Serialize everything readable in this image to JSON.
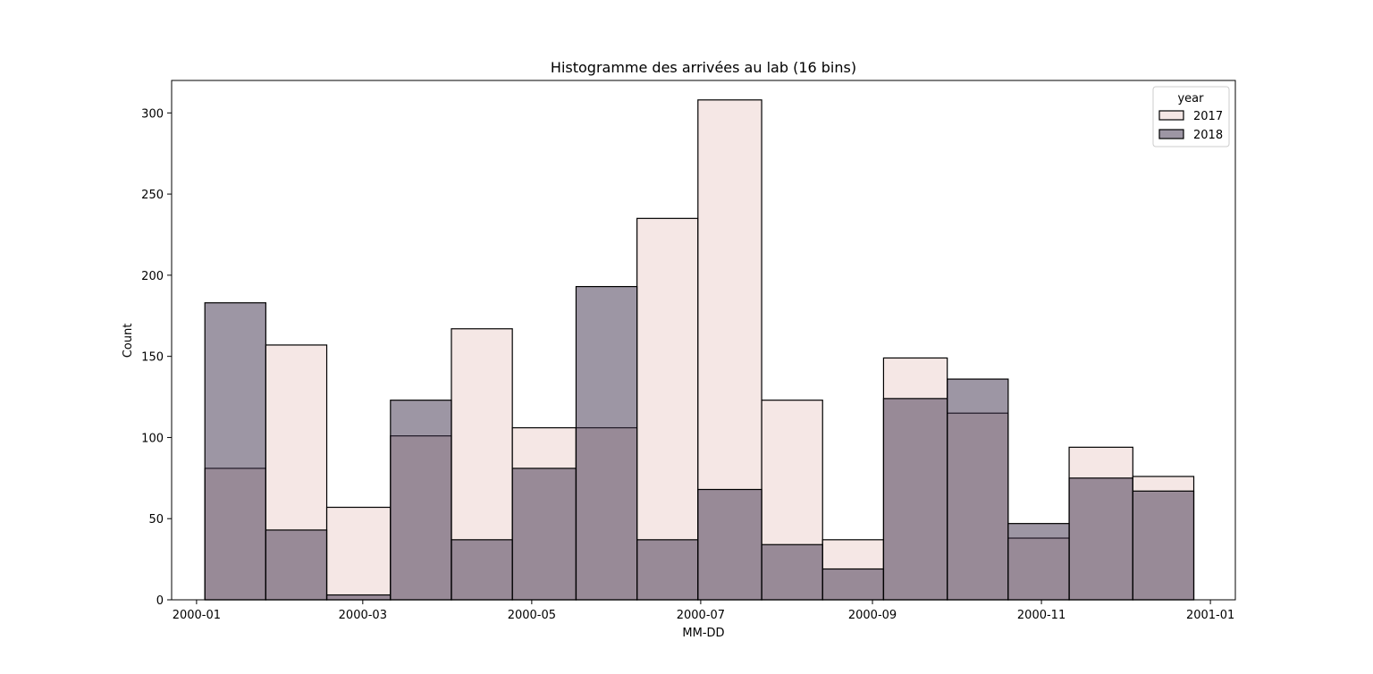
{
  "chart_data": {
    "type": "bar",
    "title": "Histogramme des arrivées au lab (16 bins)",
    "xlabel": "MM-DD",
    "ylabel": "Count",
    "x_range": [
      "2000-01-01",
      "2000-12-31"
    ],
    "ylim": [
      0,
      320
    ],
    "grid": false,
    "x_ticks": [
      "2000-01",
      "2000-03",
      "2000-05",
      "2000-07",
      "2000-09",
      "2000-11",
      "2001-01"
    ],
    "y_ticks": [
      0,
      50,
      100,
      150,
      200,
      250,
      300
    ],
    "legend": {
      "title": "year",
      "placement": "top-right"
    },
    "bins": [
      {
        "start": "2000-01-04",
        "end": "2000-01-26"
      },
      {
        "start": "2000-01-26",
        "end": "2000-02-17"
      },
      {
        "start": "2000-02-17",
        "end": "2000-03-11"
      },
      {
        "start": "2000-03-11",
        "end": "2000-04-02"
      },
      {
        "start": "2000-04-02",
        "end": "2000-04-24"
      },
      {
        "start": "2000-04-24",
        "end": "2000-05-17"
      },
      {
        "start": "2000-05-17",
        "end": "2000-06-08"
      },
      {
        "start": "2000-06-08",
        "end": "2000-06-30"
      },
      {
        "start": "2000-06-30",
        "end": "2000-07-23"
      },
      {
        "start": "2000-07-23",
        "end": "2000-08-14"
      },
      {
        "start": "2000-08-14",
        "end": "2000-09-05"
      },
      {
        "start": "2000-09-05",
        "end": "2000-09-28"
      },
      {
        "start": "2000-09-28",
        "end": "2000-10-20"
      },
      {
        "start": "2000-10-20",
        "end": "2000-11-11"
      },
      {
        "start": "2000-11-11",
        "end": "2000-12-04"
      },
      {
        "start": "2000-12-04",
        "end": "2000-12-26"
      }
    ],
    "series": [
      {
        "name": "2017",
        "color": "#f2dfdc",
        "opacity": 0.75,
        "values": [
          81,
          157,
          57,
          101,
          167,
          106,
          106,
          235,
          308,
          123,
          37,
          149,
          115,
          38,
          94,
          76
        ]
      },
      {
        "name": "2018",
        "color": "#3b2d4a",
        "opacity": 0.5,
        "values": [
          183,
          43,
          3,
          123,
          37,
          81,
          193,
          37,
          68,
          34,
          19,
          124,
          136,
          47,
          75,
          67
        ]
      }
    ]
  }
}
